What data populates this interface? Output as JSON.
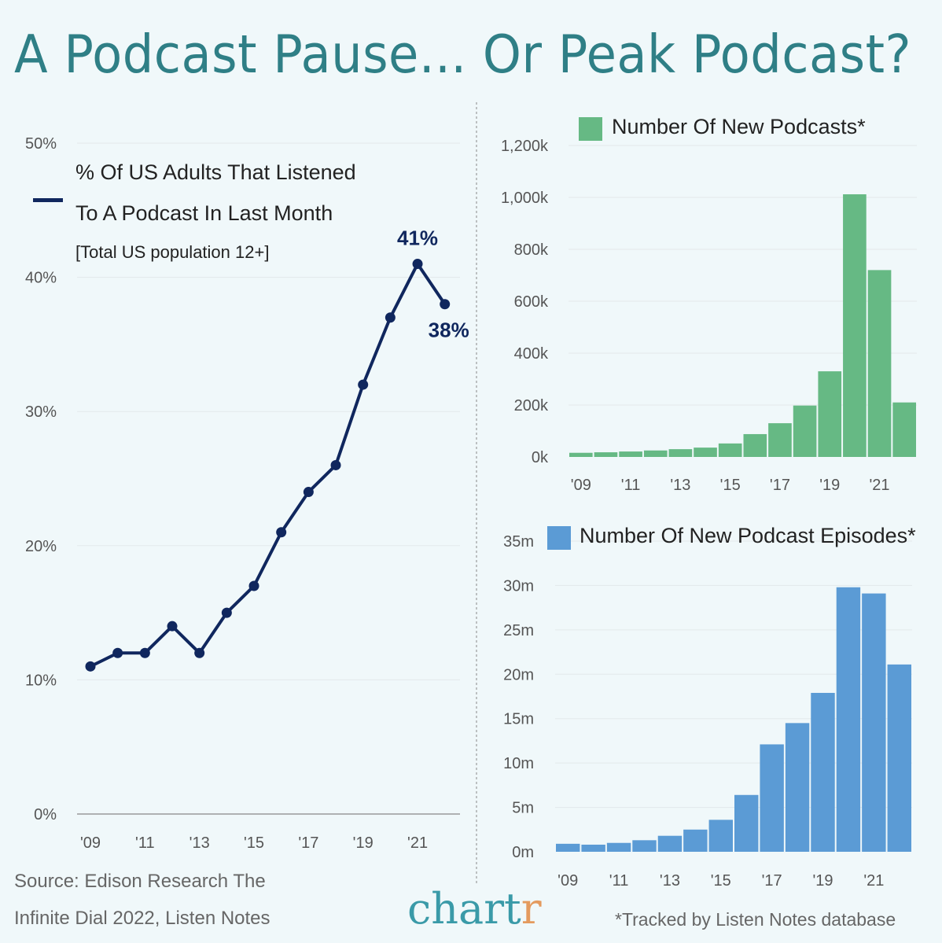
{
  "title": "A Podcast Pause... Or Peak Podcast?",
  "chart_data": [
    {
      "type": "line",
      "legend": "% Of US Adults That Listened To A Podcast In Last Month",
      "legend_line1": "% Of US Adults That Listened",
      "legend_line2": "To A Podcast In Last Month",
      "subtitle": "[Total US population 12+]",
      "x": [
        2009,
        2010,
        2011,
        2012,
        2013,
        2014,
        2015,
        2016,
        2017,
        2018,
        2019,
        2020,
        2021,
        2022
      ],
      "y": [
        11,
        12,
        12,
        14,
        12,
        15,
        17,
        21,
        24,
        26,
        32,
        37,
        41,
        38
      ],
      "ylim": [
        0,
        50
      ],
      "yticks": [
        "0%",
        "10%",
        "20%",
        "30%",
        "40%",
        "50%"
      ],
      "xticks": [
        "'09",
        "'11",
        "'13",
        "'15",
        "'17",
        "'19",
        "'21"
      ],
      "annotations": [
        "41%",
        "38%"
      ],
      "color": "#10275e",
      "grid": true,
      "legend_placement": "top-left"
    },
    {
      "type": "bar",
      "title": "Number Of New Podcasts*",
      "x": [
        2009,
        2010,
        2011,
        2012,
        2013,
        2014,
        2015,
        2016,
        2017,
        2018,
        2019,
        2020,
        2021,
        2022
      ],
      "values": [
        16,
        18,
        21,
        25,
        30,
        36,
        52,
        88,
        130,
        198,
        330,
        1012,
        720,
        210
      ],
      "unit": "k",
      "ylim": [
        0,
        1200
      ],
      "yticks": [
        "0k",
        "200k",
        "400k",
        "600k",
        "800k",
        "1,000k",
        "1,200k"
      ],
      "xticks": [
        "'09",
        "'11",
        "'13",
        "'15",
        "'17",
        "'19",
        "'21"
      ],
      "color": "#66b984",
      "grid": true
    },
    {
      "type": "bar",
      "title": "Number Of New Podcast Episodes*",
      "x": [
        2009,
        2010,
        2011,
        2012,
        2013,
        2014,
        2015,
        2016,
        2017,
        2018,
        2019,
        2020,
        2021,
        2022
      ],
      "values": [
        0.9,
        0.8,
        1.0,
        1.3,
        1.8,
        2.5,
        3.6,
        6.4,
        12.1,
        14.5,
        17.9,
        29.8,
        29.1,
        21.1
      ],
      "unit": "m",
      "ylim": [
        0,
        35
      ],
      "yticks": [
        "0m",
        "5m",
        "10m",
        "15m",
        "20m",
        "25m",
        "30m",
        "35m"
      ],
      "xticks": [
        "'09",
        "'11",
        "'13",
        "'15",
        "'17",
        "'19",
        "'21"
      ],
      "color": "#5b9bd5",
      "grid": true
    }
  ],
  "footer": {
    "source_line1": "Source: Edison Research The",
    "source_line2": "Infinite Dial 2022, Listen Notes",
    "logo_main": "chart",
    "logo_end": "r",
    "note": "*Tracked by Listen Notes database"
  }
}
